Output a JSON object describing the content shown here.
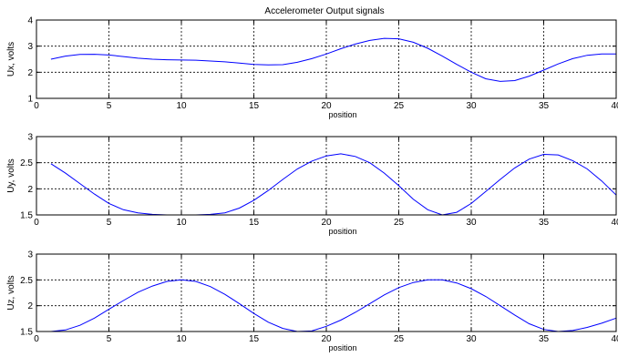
{
  "figure": {
    "title": "Accelerometer Output signals"
  },
  "chart_data": [
    {
      "type": "line",
      "title": "Accelerometer Output signals",
      "xlabel": "position",
      "ylabel": "Ux, volts",
      "xlim": [
        0,
        40
      ],
      "ylim": [
        1,
        4
      ],
      "xticks": [
        0,
        5,
        10,
        15,
        20,
        25,
        30,
        35,
        40
      ],
      "yticks": [
        1,
        2,
        3,
        4
      ],
      "grid": true,
      "series": [
        {
          "color": "#0000ff",
          "x": [
            1,
            2,
            3,
            4,
            5,
            6,
            7,
            8,
            9,
            10,
            11,
            12,
            13,
            14,
            15,
            16,
            17,
            18,
            19,
            20,
            21,
            22,
            23,
            24,
            25,
            26,
            27,
            28,
            29,
            30,
            31,
            32,
            33,
            34,
            35,
            36,
            37,
            38,
            39,
            40
          ],
          "values": [
            2.5,
            2.62,
            2.68,
            2.69,
            2.66,
            2.6,
            2.54,
            2.5,
            2.48,
            2.47,
            2.46,
            2.43,
            2.4,
            2.35,
            2.3,
            2.28,
            2.29,
            2.38,
            2.52,
            2.7,
            2.9,
            3.08,
            3.22,
            3.3,
            3.28,
            3.15,
            2.92,
            2.62,
            2.3,
            2.0,
            1.75,
            1.65,
            1.68,
            1.85,
            2.08,
            2.32,
            2.52,
            2.65,
            2.7,
            2.7
          ]
        }
      ]
    },
    {
      "type": "line",
      "title": "",
      "xlabel": "position",
      "ylabel": "Uy, volts",
      "xlim": [
        0,
        40
      ],
      "ylim": [
        1.5,
        3
      ],
      "xticks": [
        0,
        5,
        10,
        15,
        20,
        25,
        30,
        35,
        40
      ],
      "yticks": [
        1.5,
        2,
        2.5,
        3
      ],
      "grid": true,
      "series": [
        {
          "color": "#0000ff",
          "x": [
            1,
            2,
            3,
            4,
            5,
            6,
            7,
            8,
            9,
            10,
            11,
            12,
            13,
            14,
            15,
            16,
            17,
            18,
            19,
            20,
            21,
            22,
            23,
            24,
            25,
            26,
            27,
            28,
            29,
            30,
            31,
            32,
            33,
            34,
            35,
            36,
            37,
            38,
            39,
            40
          ],
          "values": [
            2.48,
            2.3,
            2.1,
            1.9,
            1.72,
            1.6,
            1.54,
            1.51,
            1.5,
            1.5,
            1.5,
            1.51,
            1.54,
            1.63,
            1.78,
            1.97,
            2.18,
            2.38,
            2.53,
            2.63,
            2.67,
            2.62,
            2.5,
            2.3,
            2.06,
            1.8,
            1.6,
            1.5,
            1.55,
            1.72,
            1.95,
            2.18,
            2.4,
            2.57,
            2.66,
            2.65,
            2.54,
            2.38,
            2.15,
            1.88
          ]
        }
      ]
    },
    {
      "type": "line",
      "title": "",
      "xlabel": "position",
      "ylabel": "Uz, volts",
      "xlim": [
        0,
        40
      ],
      "ylim": [
        1.5,
        3
      ],
      "xticks": [
        0,
        5,
        10,
        15,
        20,
        25,
        30,
        35,
        40
      ],
      "yticks": [
        1.5,
        2,
        2.5,
        3
      ],
      "grid": true,
      "series": [
        {
          "color": "#0000ff",
          "x": [
            1,
            2,
            3,
            4,
            5,
            6,
            7,
            8,
            9,
            10,
            11,
            12,
            13,
            14,
            15,
            16,
            17,
            18,
            19,
            20,
            21,
            22,
            23,
            24,
            25,
            26,
            27,
            28,
            29,
            30,
            31,
            32,
            33,
            34,
            35,
            36,
            37,
            38,
            39,
            40
          ],
          "values": [
            1.5,
            1.53,
            1.62,
            1.76,
            1.93,
            2.1,
            2.26,
            2.38,
            2.47,
            2.5,
            2.47,
            2.37,
            2.22,
            2.04,
            1.85,
            1.68,
            1.56,
            1.5,
            1.51,
            1.6,
            1.72,
            1.87,
            2.04,
            2.21,
            2.35,
            2.45,
            2.5,
            2.5,
            2.44,
            2.33,
            2.18,
            2.0,
            1.82,
            1.65,
            1.54,
            1.5,
            1.52,
            1.58,
            1.66,
            1.76
          ]
        }
      ]
    }
  ]
}
